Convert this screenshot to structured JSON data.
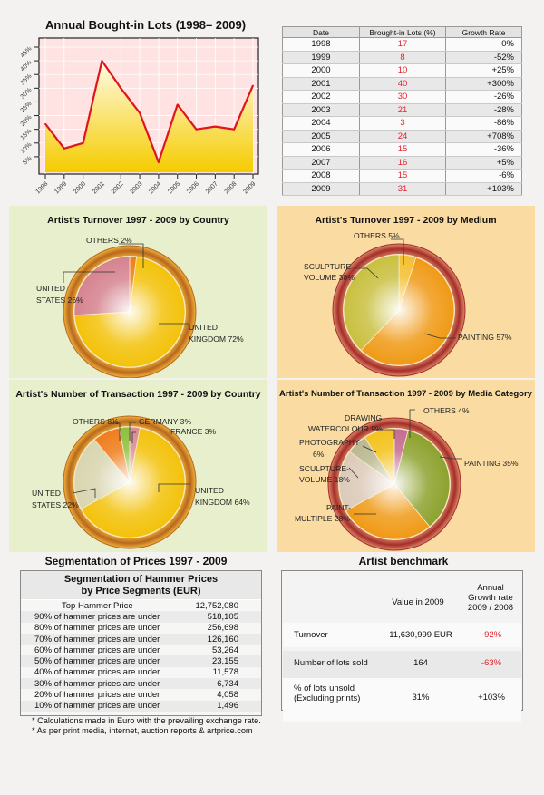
{
  "line_title": "Annual Bought-in Lots (1998– 2009)",
  "table": {
    "headers": [
      "Date",
      "Brought-in Lots (%)",
      "Growth Rate"
    ],
    "rows": [
      [
        "1998",
        "17",
        "0%"
      ],
      [
        "1999",
        "8",
        "-52%"
      ],
      [
        "2000",
        "10",
        "+25%"
      ],
      [
        "2001",
        "40",
        "+300%"
      ],
      [
        "2002",
        "30",
        "-26%"
      ],
      [
        "2003",
        "21",
        "-28%"
      ],
      [
        "2004",
        "3",
        "-86%"
      ],
      [
        "2005",
        "24",
        "+708%"
      ],
      [
        "2006",
        "15",
        "-36%"
      ],
      [
        "2007",
        "16",
        "+5%"
      ],
      [
        "2008",
        "15",
        "-6%"
      ],
      [
        "2009",
        "31",
        "+103%"
      ]
    ]
  },
  "chart_data": [
    {
      "type": "area",
      "title": "Annual Bought-in Lots (1998– 2009)",
      "xlabel": "",
      "ylabel": "",
      "x": [
        "1998",
        "1999",
        "2000",
        "2001",
        "2002",
        "2003",
        "2004",
        "2005",
        "2006",
        "2007",
        "2008",
        "2009"
      ],
      "values": [
        17,
        8,
        10,
        40,
        30,
        21,
        3,
        24,
        15,
        16,
        15,
        31
      ],
      "ylim": [
        0,
        45
      ],
      "yticks": [
        "5%",
        "10%",
        "15%",
        "20%",
        "25%",
        "30%",
        "35%",
        "40%",
        "45%"
      ],
      "grid": true,
      "colors": {
        "line": "#e0141e",
        "plot_bg": "#ffe3e3",
        "fill_top": "#fff6d8",
        "fill_bottom": "#f5cc00"
      }
    },
    {
      "type": "pie",
      "title": "Artist's Turnover 1997 - 2009 by Country",
      "slices": [
        {
          "label": "UNITED KINGDOM",
          "value": 72,
          "color": "#f3c20a"
        },
        {
          "label": "UNITED STATES",
          "value": 26,
          "color": "#d5838f"
        },
        {
          "label": "OTHERS",
          "value": 2,
          "color": "#ef7d1c"
        }
      ]
    },
    {
      "type": "pie",
      "title": "Artist's Turnover 1997 - 2009 by Medium",
      "slices": [
        {
          "label": "PAINTING",
          "value": 57,
          "color": "#f09a16"
        },
        {
          "label": "SCULPTURE-VOLUME",
          "value": 38,
          "color": "#c9c040"
        },
        {
          "label": "OTHERS",
          "value": 5,
          "color": "#f4c030"
        }
      ]
    },
    {
      "type": "pie",
      "title": "Artist's Number of Transaction 1997 - 2009 by Country",
      "slices": [
        {
          "label": "UNITED KINGDOM",
          "value": 64,
          "color": "#f3c20a"
        },
        {
          "label": "UNITED STATES",
          "value": 22,
          "color": "#d9d5b0"
        },
        {
          "label": "OTHERS",
          "value": 8,
          "color": "#ef7d1c"
        },
        {
          "label": "GERMANY",
          "value": 3,
          "color": "#8dc03a"
        },
        {
          "label": "FRANCE",
          "value": 3,
          "color": "#d98b90"
        }
      ]
    },
    {
      "type": "pie",
      "title": "Artist's Number of Transaction 1997 - 2009 by Media Category",
      "slices": [
        {
          "label": "PAINTING",
          "value": 35,
          "color": "#8da22e"
        },
        {
          "label": "PAINT-MULTIPLE",
          "value": 28,
          "color": "#f09a16"
        },
        {
          "label": "SCULPTURE-VOLUME",
          "value": 18,
          "color": "#dccab8"
        },
        {
          "label": "PHOTOGRAPHY",
          "value": 6,
          "color": "#b9b890"
        },
        {
          "label": "DRAWING WATERCOLOUR",
          "value": 9,
          "color": "#f4c21c"
        },
        {
          "label": "OTHERS",
          "value": 4,
          "color": "#c56a90"
        }
      ]
    }
  ],
  "pies": [
    {
      "title": "Artist's Turnover 1997 - 2009 by Country",
      "labels": [
        [
          "UNITED",
          "KINGDOM 72%"
        ],
        [
          "UNITED",
          "STATES 26%"
        ],
        [
          "OTHERS 2%"
        ]
      ]
    },
    {
      "title": "Artist's Turnover 1997 - 2009 by Medium",
      "labels": [
        [
          "PAINTING 57%"
        ],
        [
          "SCULPTURE-",
          "VOLUME 38%"
        ],
        [
          "OTHERS 5%"
        ]
      ]
    },
    {
      "title": "Artist's Number of Transaction 1997 - 2009 by Country",
      "labels": [
        [
          "UNITED",
          "KINGDOM 64%"
        ],
        [
          "UNITED",
          "STATES 22%"
        ],
        [
          "OTHERS 8%"
        ],
        [
          "GERMANY 3%"
        ],
        [
          "FRANCE 3%"
        ]
      ]
    },
    {
      "title": "Artist's Number of Transaction 1997 - 2009 by Media Category",
      "labels": [
        [
          "PAINTING 35%"
        ],
        [
          "PAINT-",
          "MULTIPLE 28%"
        ],
        [
          "SCULPTURE-",
          "VOLUME 18%"
        ],
        [
          "PHOTOGRAPHY",
          "6%"
        ],
        [
          "DRAWING",
          "WATERCOLOUR 9%"
        ],
        [
          "OTHERS 4%"
        ]
      ]
    }
  ],
  "segmentation": {
    "title": "Segmentation of Prices 1997 - 2009",
    "box_title_1": "Segmentation of Hammer Prices",
    "box_title_2": "by Price Segments (EUR)",
    "rows": [
      [
        "Top Hammer Price",
        "12,752,080"
      ],
      [
        "90% of hammer prices are under",
        "518,105"
      ],
      [
        "80% of hammer prices are under",
        "256,698"
      ],
      [
        "70% of hammer prices are under",
        "126,160"
      ],
      [
        "60% of hammer prices are under",
        "53,264"
      ],
      [
        "50% of hammer prices are under",
        "23,155"
      ],
      [
        "40% of hammer prices are under",
        "11,578"
      ],
      [
        "30% of hammer prices are under",
        "6,734"
      ],
      [
        "20% of hammer prices are under",
        "4,058"
      ],
      [
        "10% of hammer prices are under",
        "1,496"
      ]
    ],
    "notes": [
      "* Calculations made in Euro with the prevailing exchange rate.",
      "* As per print media, internet, auction reports & artprice.com"
    ]
  },
  "benchmark": {
    "title": "Artist benchmark",
    "col_value": "Value in 2009",
    "col_growth_1": "Annual",
    "col_growth_2": "Growth rate",
    "col_growth_3": "2009 / 2008",
    "rows": [
      {
        "label_1": "Turnover",
        "label_2": "",
        "value": "11,630,999 EUR",
        "growth": "-92%",
        "negative": true
      },
      {
        "label_1": "Number of lots sold",
        "label_2": "",
        "value": "164",
        "growth": "-63%",
        "negative": true
      },
      {
        "label_1": "% of lots unsold",
        "label_2": "(Excluding prints)",
        "value": "31%",
        "growth": "+103%",
        "negative": false
      }
    ]
  }
}
